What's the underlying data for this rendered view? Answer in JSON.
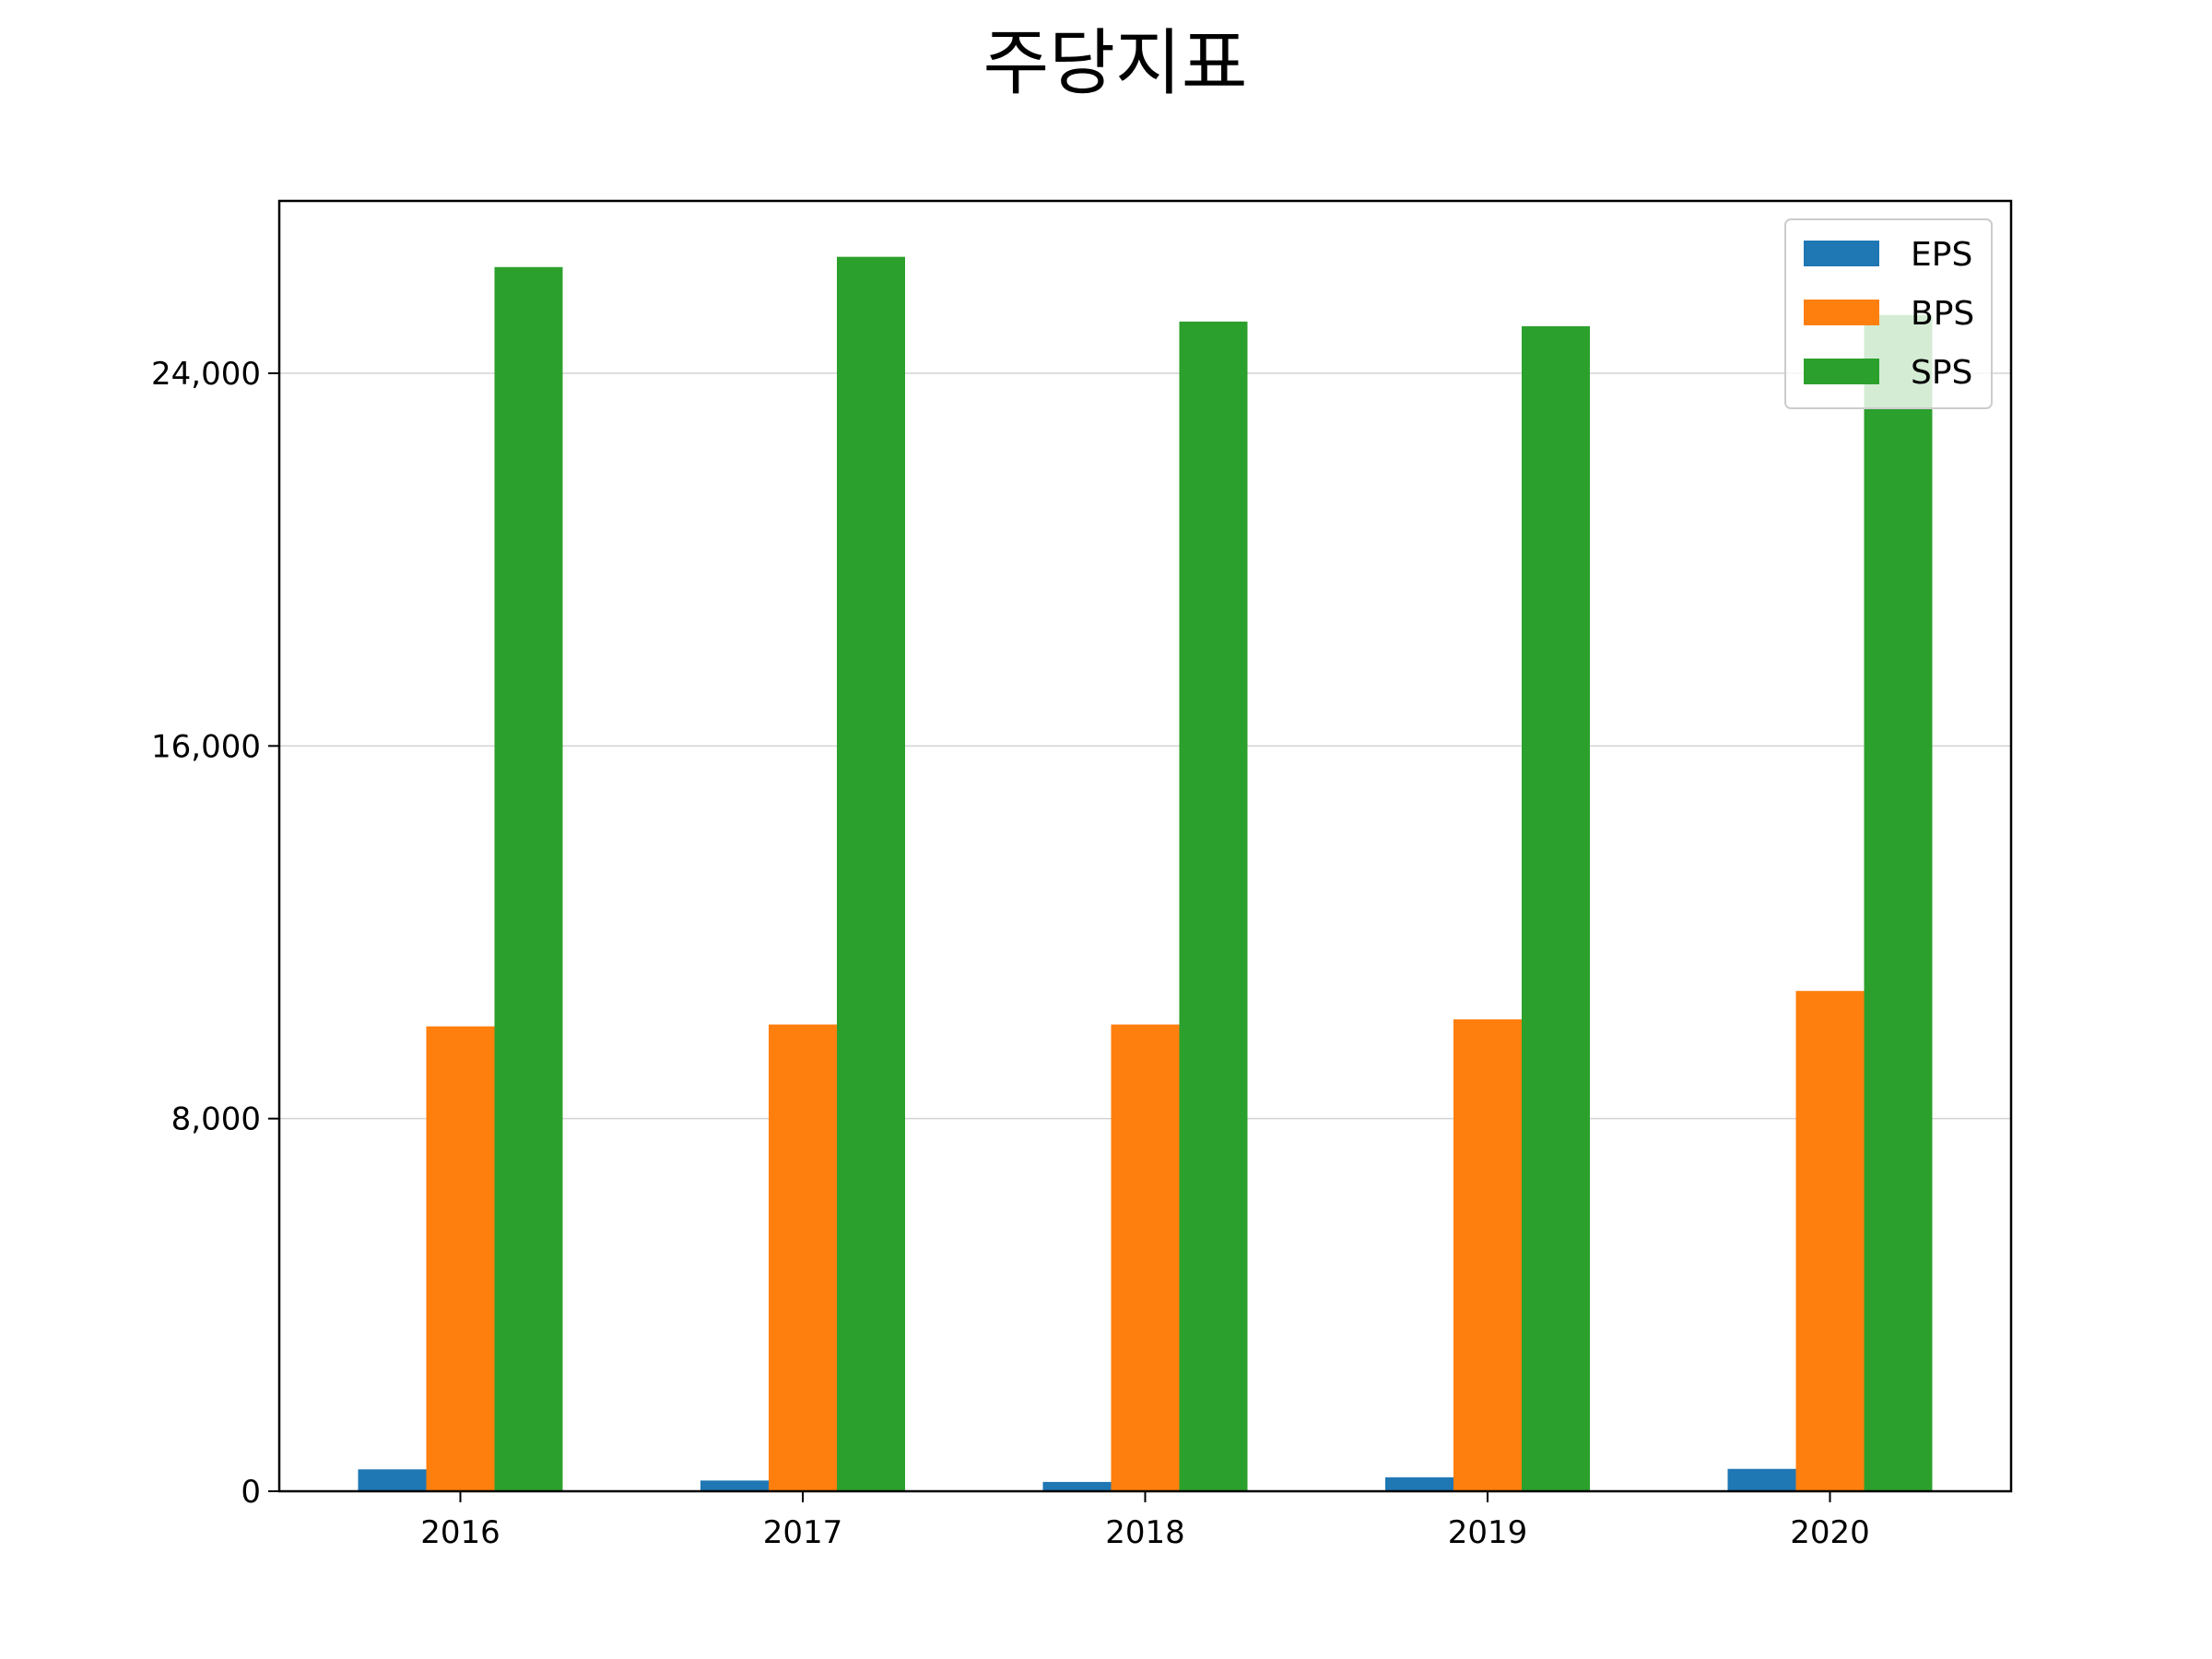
{
  "chart_data": {
    "type": "bar",
    "title": "주당지표",
    "categories": [
      "2016",
      "2017",
      "2018",
      "2019",
      "2020"
    ],
    "series": [
      {
        "name": "EPS",
        "color": "#1f77b4",
        "values": [
          470,
          230,
          200,
          300,
          480
        ]
      },
      {
        "name": "BPS",
        "color": "#ff7f0e",
        "values": [
          9980,
          10020,
          10020,
          10130,
          10740
        ]
      },
      {
        "name": "SPS",
        "color": "#2ca02c",
        "values": [
          26280,
          26500,
          25110,
          25010,
          25250
        ]
      }
    ],
    "xlabel": "",
    "ylabel": "",
    "ylim": [
      0,
      27700
    ],
    "yticks": [
      0,
      8000,
      16000,
      24000
    ],
    "ytick_labels": [
      "0",
      "8,000",
      "16,000",
      "24,000"
    ],
    "grid": "y",
    "legend_position": "top-right"
  }
}
